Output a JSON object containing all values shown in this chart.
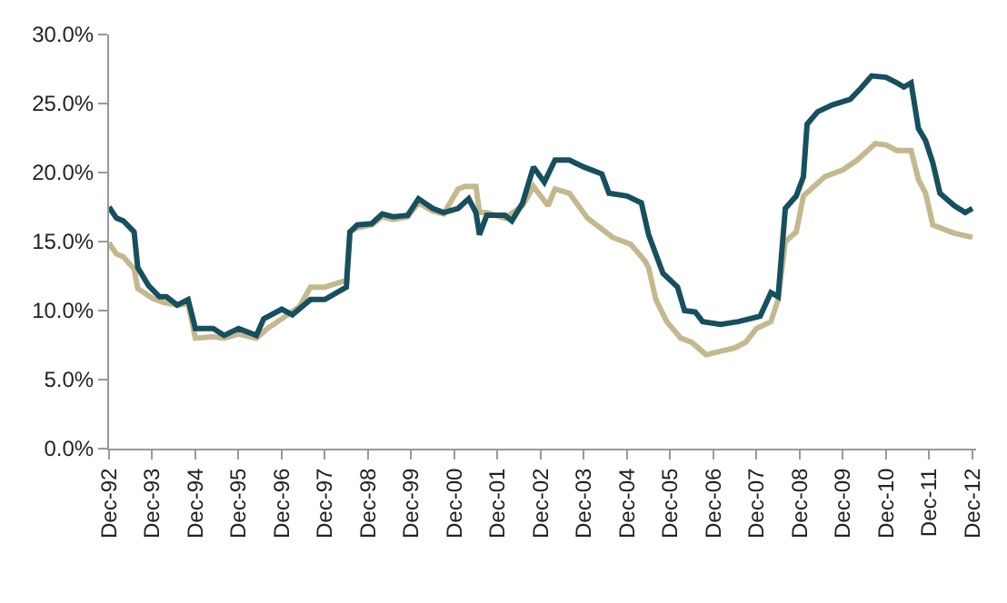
{
  "chart_data": {
    "type": "line",
    "line_style": "solid",
    "marker": "none",
    "xlim": [
      "1992-12",
      "2013-01"
    ],
    "xticks": [
      {
        "value": "1992-12",
        "label": "Dec-92"
      },
      {
        "value": "1993-12",
        "label": "Dec-93"
      },
      {
        "value": "1994-12",
        "label": "Dec-94"
      },
      {
        "value": "1995-12",
        "label": "Dec-95"
      },
      {
        "value": "1996-12",
        "label": "Dec-96"
      },
      {
        "value": "1997-12",
        "label": "Dec-97"
      },
      {
        "value": "1998-12",
        "label": "Dec-98"
      },
      {
        "value": "1999-12",
        "label": "Dec-99"
      },
      {
        "value": "2000-12",
        "label": "Dec-00"
      },
      {
        "value": "2001-12",
        "label": "Dec-01"
      },
      {
        "value": "2002-12",
        "label": "Dec-02"
      },
      {
        "value": "2003-12",
        "label": "Dec-03"
      },
      {
        "value": "2004-12",
        "label": "Dec-04"
      },
      {
        "value": "2005-12",
        "label": "Dec-05"
      },
      {
        "value": "2006-12",
        "label": "Dec-06"
      },
      {
        "value": "2007-12",
        "label": "Dec-07"
      },
      {
        "value": "2008-12",
        "label": "Dec-08"
      },
      {
        "value": "2009-12",
        "label": "Dec-09"
      },
      {
        "value": "2010-12",
        "label": "Dec-10"
      },
      {
        "value": "2011-12",
        "label": "Dec-11"
      },
      {
        "value": "2012-12",
        "label": "Dec-12"
      }
    ],
    "ylim": [
      0,
      30
    ],
    "yticks": [
      {
        "value": 0,
        "label": "0.0%"
      },
      {
        "value": 5,
        "label": "5.0%"
      },
      {
        "value": 10,
        "label": "10.0%"
      },
      {
        "value": 15,
        "label": "15.0%"
      },
      {
        "value": 20,
        "label": "20.0%"
      },
      {
        "value": 25,
        "label": "25.0%"
      },
      {
        "value": 30,
        "label": "30.0%"
      }
    ],
    "series": [
      {
        "color": "#c4b98e",
        "x": [
          "1992-12",
          "1993-02",
          "1993-04",
          "1993-07",
          "1993-08",
          "1993-12",
          "1994-03",
          "1994-07",
          "1994-10",
          "1994-12",
          "1995-05",
          "1995-08",
          "1995-12",
          "1996-05",
          "1996-08",
          "1996-12",
          "1997-05",
          "1997-08",
          "1997-12",
          "1998-06",
          "1998-07",
          "1998-09",
          "1999-01",
          "1999-04",
          "1999-07",
          "1999-11",
          "2000-02",
          "2000-06",
          "2000-09",
          "2001-01",
          "2001-03",
          "2001-06",
          "2001-07",
          "2001-09",
          "2002-02",
          "2002-07",
          "2002-10",
          "2003-02",
          "2003-04",
          "2003-08",
          "2004-01",
          "2004-08",
          "2005-01",
          "2005-05",
          "2005-06",
          "2005-08",
          "2005-11",
          "2006-03",
          "2006-06",
          "2006-10",
          "2007-01",
          "2007-06",
          "2007-09",
          "2007-12",
          "2008-04",
          "2008-06",
          "2008-08",
          "2008-11",
          "2009-01",
          "2009-04",
          "2009-07",
          "2009-12",
          "2010-04",
          "2010-09",
          "2010-12",
          "2011-03",
          "2011-07",
          "2011-09",
          "2011-11",
          "2012-01",
          "2012-03",
          "2012-07",
          "2012-12"
        ],
        "values": [
          14.9,
          14.1,
          13.9,
          13.0,
          11.6,
          10.9,
          10.6,
          10.4,
          10.5,
          8.0,
          8.1,
          8.0,
          8.3,
          8.0,
          8.7,
          9.4,
          10.3,
          11.7,
          11.7,
          12.2,
          15.7,
          16.0,
          16.2,
          16.8,
          16.6,
          16.8,
          17.8,
          17.2,
          17.0,
          18.8,
          19.0,
          19.0,
          17.1,
          17.1,
          16.7,
          17.6,
          19.0,
          17.6,
          18.8,
          18.5,
          16.7,
          15.3,
          14.8,
          13.6,
          13.1,
          10.8,
          9.2,
          8.0,
          7.7,
          6.8,
          7.0,
          7.3,
          7.7,
          8.7,
          9.2,
          10.8,
          15.0,
          15.7,
          18.3,
          19.0,
          19.7,
          20.2,
          20.9,
          22.1,
          22.0,
          21.6,
          21.6,
          19.5,
          18.5,
          16.2,
          16.0,
          15.6,
          15.3
        ]
      },
      {
        "color": "#16505f",
        "x": [
          "1992-12",
          "1993-02",
          "1993-04",
          "1993-07",
          "1993-08",
          "1993-11",
          "1994-02",
          "1994-04",
          "1994-07",
          "1994-10",
          "1994-12",
          "1995-05",
          "1995-08",
          "1995-12",
          "1996-05",
          "1996-07",
          "1996-12",
          "1997-03",
          "1997-08",
          "1997-12",
          "1998-06",
          "1998-07",
          "1998-09",
          "1999-01",
          "1999-04",
          "1999-07",
          "1999-11",
          "2000-02",
          "2000-06",
          "2000-09",
          "2001-01",
          "2001-04",
          "2001-06",
          "2001-07",
          "2001-09",
          "2002-02",
          "2002-04",
          "2002-07",
          "2002-10",
          "2003-01",
          "2003-04",
          "2003-08",
          "2003-12",
          "2004-05",
          "2004-07",
          "2004-12",
          "2005-04",
          "2005-06",
          "2005-08",
          "2005-10",
          "2006-02",
          "2006-04",
          "2006-07",
          "2006-09",
          "2007-02",
          "2007-07",
          "2008-01",
          "2008-04",
          "2008-06",
          "2008-08",
          "2008-11",
          "2009-01",
          "2009-02",
          "2009-05",
          "2009-09",
          "2010-02",
          "2010-05",
          "2010-08",
          "2010-12",
          "2011-03",
          "2011-05",
          "2011-07",
          "2011-09",
          "2011-11",
          "2012-01",
          "2012-03",
          "2012-07",
          "2012-10",
          "2012-12"
        ],
        "values": [
          17.5,
          16.7,
          16.5,
          15.7,
          13.1,
          11.8,
          11.0,
          11.0,
          10.4,
          10.8,
          8.7,
          8.7,
          8.2,
          8.7,
          8.2,
          9.4,
          10.1,
          9.7,
          10.8,
          10.8,
          11.7,
          15.7,
          16.2,
          16.3,
          17.0,
          16.8,
          16.9,
          18.1,
          17.4,
          17.1,
          17.4,
          18.1,
          17.1,
          15.5,
          16.9,
          16.9,
          16.5,
          17.8,
          20.4,
          19.3,
          20.9,
          20.9,
          20.4,
          19.9,
          18.5,
          18.3,
          17.8,
          15.5,
          14.1,
          12.7,
          11.7,
          10.0,
          9.9,
          9.2,
          9.0,
          9.2,
          9.6,
          11.3,
          11.0,
          17.4,
          18.3,
          19.7,
          23.5,
          24.4,
          24.9,
          25.3,
          26.1,
          27.0,
          26.9,
          26.5,
          26.2,
          26.5,
          23.2,
          22.3,
          20.7,
          18.5,
          17.6,
          17.1,
          17.4
        ]
      }
    ]
  }
}
